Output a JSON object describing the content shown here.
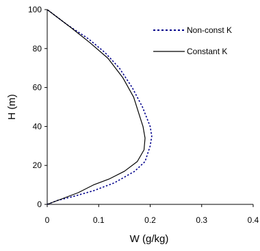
{
  "chart_data": {
    "type": "line",
    "title": "",
    "xlabel": "W  (g/kg)",
    "ylabel": "H (m)",
    "xlim": [
      0,
      0.4
    ],
    "ylim": [
      0,
      100
    ],
    "x_ticks": [
      "0",
      "0.1",
      "0.2",
      "0.3",
      "0.4"
    ],
    "y_ticks": [
      "0",
      "20",
      "40",
      "60",
      "80",
      "100"
    ],
    "grid": false,
    "legend_position": "top-right",
    "series": [
      {
        "name": "Non-const K",
        "style": "dotted",
        "color": "#00008B",
        "x": [
          0,
          0.02,
          0.05,
          0.09,
          0.13,
          0.17,
          0.19,
          0.2,
          0.203,
          0.2,
          0.185,
          0.165,
          0.14,
          0.112,
          0.08,
          0.04,
          0
        ],
        "y": [
          0,
          2,
          4,
          7,
          11,
          17,
          22,
          30,
          35,
          40,
          50,
          60,
          70,
          78,
          85,
          92,
          100
        ]
      },
      {
        "name": "Constant K",
        "style": "solid",
        "color": "#000000",
        "x": [
          0,
          0.03,
          0.06,
          0.09,
          0.12,
          0.15,
          0.175,
          0.188,
          0.19,
          0.186,
          0.18,
          0.168,
          0.147,
          0.118,
          0.083,
          0.045,
          0
        ],
        "y": [
          0,
          3,
          6,
          10,
          13,
          17,
          22,
          28,
          34,
          40,
          45,
          55,
          65,
          75,
          83,
          91,
          100
        ]
      }
    ]
  }
}
